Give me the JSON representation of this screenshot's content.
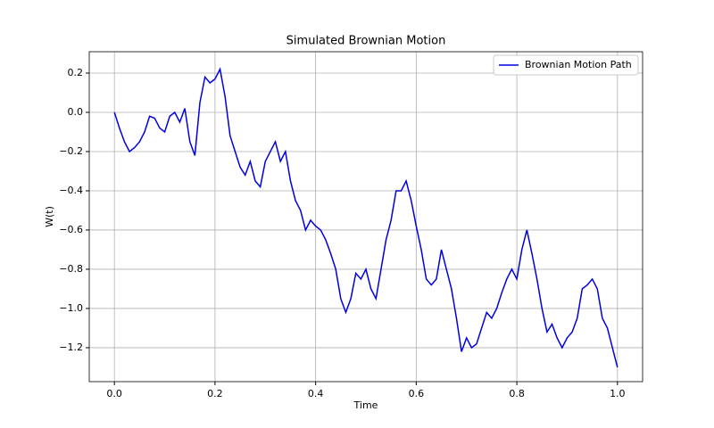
{
  "chart_data": {
    "type": "line",
    "title": "Simulated Brownian Motion",
    "xlabel": "Time",
    "ylabel": "W(t)",
    "x": [
      0,
      0.01,
      0.02,
      0.03,
      0.04,
      0.05,
      0.06,
      0.07,
      0.08,
      0.09,
      0.1,
      0.11,
      0.12,
      0.13,
      0.14,
      0.15,
      0.16,
      0.17,
      0.18,
      0.19,
      0.2,
      0.21,
      0.22,
      0.23,
      0.24,
      0.25,
      0.26,
      0.27,
      0.28,
      0.29,
      0.3,
      0.31,
      0.32,
      0.33,
      0.34,
      0.35,
      0.36,
      0.37,
      0.38,
      0.39,
      0.4,
      0.41,
      0.42,
      0.43,
      0.44,
      0.45,
      0.46,
      0.47,
      0.48,
      0.49,
      0.5,
      0.51,
      0.52,
      0.53,
      0.54,
      0.55,
      0.56,
      0.57,
      0.58,
      0.59,
      0.6,
      0.61,
      0.62,
      0.63,
      0.64,
      0.65,
      0.66,
      0.67,
      0.68,
      0.69,
      0.7,
      0.71,
      0.72,
      0.73,
      0.74,
      0.75,
      0.76,
      0.77,
      0.78,
      0.79,
      0.8,
      0.81,
      0.82,
      0.83,
      0.84,
      0.85,
      0.86,
      0.87,
      0.88,
      0.89,
      0.9,
      0.91,
      0.92,
      0.93,
      0.94,
      0.95,
      0.96,
      0.97,
      0.98,
      0.99,
      1.0
    ],
    "series": [
      {
        "name": "Brownian Motion Path",
        "color": "#0000e0",
        "values": [
          0.0,
          -0.08,
          -0.15,
          -0.2,
          -0.18,
          -0.15,
          -0.1,
          -0.02,
          -0.03,
          -0.08,
          -0.1,
          -0.02,
          0.0,
          -0.05,
          0.02,
          -0.15,
          -0.22,
          0.05,
          0.18,
          0.15,
          0.17,
          0.22,
          0.08,
          -0.12,
          -0.2,
          -0.28,
          -0.32,
          -0.25,
          -0.35,
          -0.38,
          -0.25,
          -0.2,
          -0.15,
          -0.25,
          -0.2,
          -0.35,
          -0.45,
          -0.5,
          -0.6,
          -0.55,
          -0.58,
          -0.6,
          -0.65,
          -0.72,
          -0.8,
          -0.95,
          -1.02,
          -0.95,
          -0.82,
          -0.85,
          -0.8,
          -0.9,
          -0.95,
          -0.8,
          -0.65,
          -0.55,
          -0.4,
          -0.4,
          -0.35,
          -0.45,
          -0.58,
          -0.7,
          -0.85,
          -0.88,
          -0.85,
          -0.7,
          -0.8,
          -0.9,
          -1.05,
          -1.22,
          -1.15,
          -1.2,
          -1.18,
          -1.1,
          -1.02,
          -1.05,
          -1.0,
          -0.92,
          -0.85,
          -0.8,
          -0.85,
          -0.7,
          -0.6,
          -0.72,
          -0.85,
          -1.0,
          -1.12,
          -1.08,
          -1.15,
          -1.2,
          -1.15,
          -1.12,
          -1.05,
          -0.9,
          -0.88,
          -0.85,
          -0.9,
          -1.05,
          -1.1,
          -1.2,
          -1.3
        ]
      }
    ],
    "xlim": [
      -0.05,
      1.05
    ],
    "ylim": [
      -1.373,
      0.309
    ],
    "xticks": [
      {
        "value": 0,
        "label": "0.0"
      },
      0.2,
      0.4,
      0.6,
      0.8,
      {
        "value": 1,
        "label": "1.0"
      }
    ],
    "yticks": [
      {
        "value": -1.2,
        "label": "−1.2"
      },
      {
        "value": -1.0,
        "label": "−1.0"
      },
      {
        "value": -0.8,
        "label": "−0.8"
      },
      {
        "value": -0.6,
        "label": "−0.6"
      },
      {
        "value": -0.4,
        "label": "−0.4"
      },
      {
        "value": -0.2,
        "label": "−0.2"
      },
      {
        "value": 0,
        "label": "0.0"
      },
      0.2
    ],
    "grid": true,
    "legend": "upper right"
  }
}
